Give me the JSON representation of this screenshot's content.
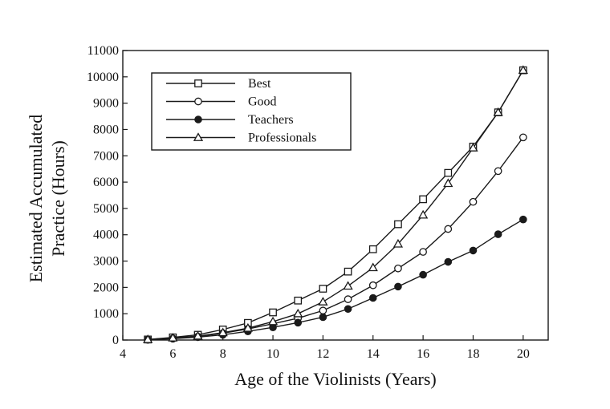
{
  "chart_data": {
    "type": "line",
    "xlabel": "Age of the Violinists (Years)",
    "ylabel_line1": "Estimated Accumulated",
    "ylabel_line2": "Practice (Hours)",
    "xlim": [
      4,
      21
    ],
    "ylim": [
      0,
      11000
    ],
    "x_ticks": [
      4,
      6,
      8,
      10,
      12,
      14,
      16,
      18,
      20
    ],
    "y_ticks": [
      0,
      1000,
      2000,
      3000,
      4000,
      5000,
      6000,
      7000,
      8000,
      9000,
      10000,
      11000
    ],
    "grid": false,
    "legend_position": "top-left",
    "colors": {
      "line": "#1a1a1a"
    },
    "series": [
      {
        "name": "Best",
        "marker": "square-open",
        "x": [
          5,
          6,
          7,
          8,
          9,
          10,
          11,
          12,
          13,
          14,
          15,
          16,
          17,
          18,
          19,
          20
        ],
        "values": [
          20,
          100,
          200,
          400,
          650,
          1050,
          1500,
          1950,
          2600,
          3450,
          4400,
          5350,
          6350,
          7350,
          8650,
          10250
        ]
      },
      {
        "name": "Good",
        "marker": "circle-open",
        "x": [
          5,
          6,
          7,
          8,
          9,
          10,
          11,
          12,
          13,
          14,
          15,
          16,
          17,
          18,
          19,
          20
        ],
        "values": [
          10,
          60,
          130,
          260,
          420,
          620,
          830,
          1120,
          1550,
          2080,
          2720,
          3350,
          4220,
          5250,
          6420,
          7700
        ]
      },
      {
        "name": "Teachers",
        "marker": "circle-filled",
        "x": [
          5,
          6,
          7,
          8,
          9,
          10,
          11,
          12,
          13,
          14,
          15,
          16,
          17,
          18,
          19,
          20
        ],
        "values": [
          10,
          50,
          110,
          200,
          330,
          480,
          660,
          870,
          1180,
          1600,
          2030,
          2480,
          2970,
          3400,
          4020,
          4580
        ]
      },
      {
        "name": "Professionals",
        "marker": "triangle-open",
        "x": [
          5,
          6,
          7,
          8,
          9,
          10,
          11,
          12,
          13,
          14,
          15,
          16,
          17,
          18,
          19,
          20
        ],
        "values": [
          20,
          80,
          150,
          280,
          450,
          700,
          1000,
          1450,
          2050,
          2750,
          3650,
          4750,
          5950,
          7300,
          8650,
          10250
        ]
      }
    ]
  }
}
